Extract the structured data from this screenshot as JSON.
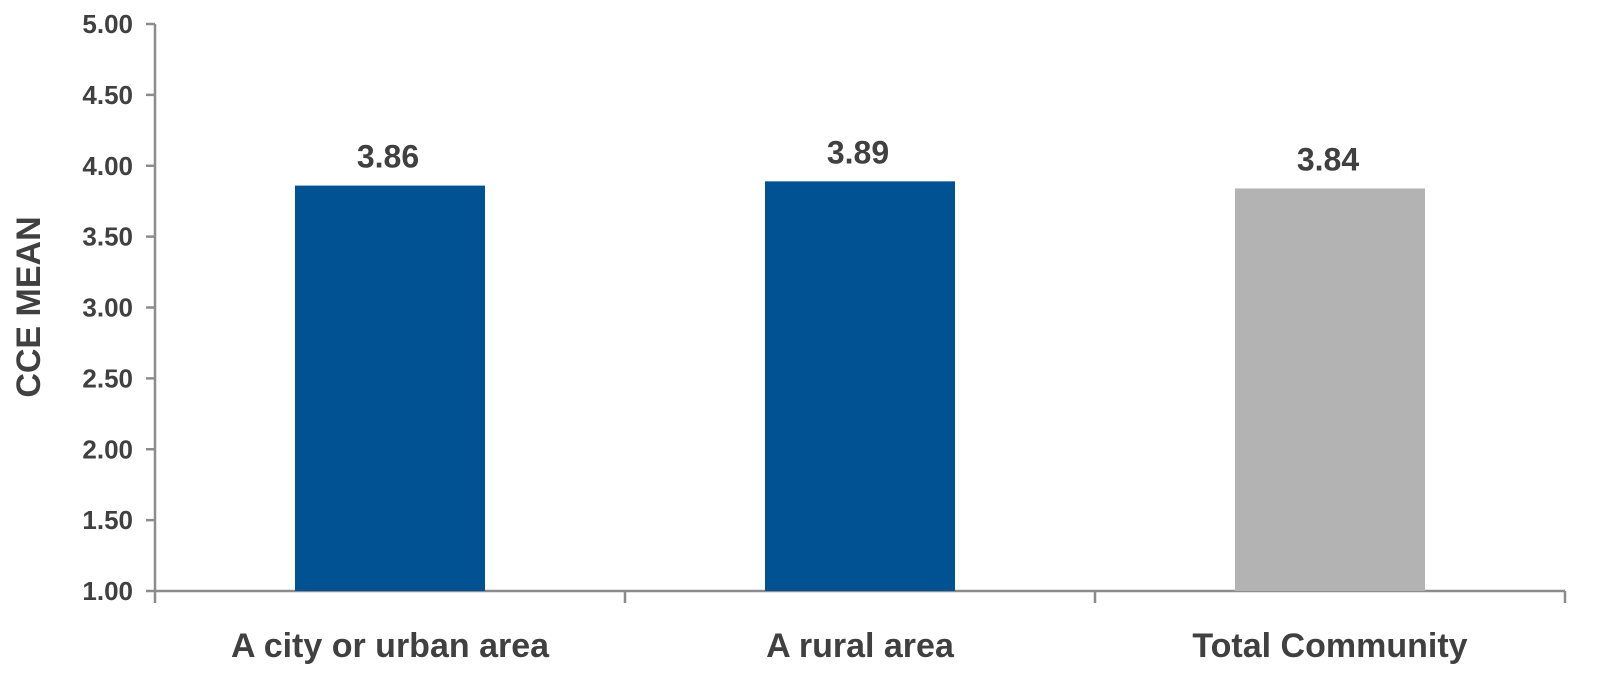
{
  "chart_data": {
    "type": "bar",
    "title": "",
    "xlabel": "",
    "ylabel": "CCE MEAN",
    "ylim": [
      1.0,
      5.0
    ],
    "yticks": [
      "1.00",
      "1.50",
      "2.00",
      "2.50",
      "3.00",
      "3.50",
      "4.00",
      "4.50",
      "5.00"
    ],
    "categories": [
      "A city or urban area",
      "A rural area",
      "Total Community"
    ],
    "values": [
      3.86,
      3.89,
      3.84
    ],
    "value_labels": [
      "3.86",
      "3.89",
      "3.84"
    ],
    "colors": [
      "#005293",
      "#005293",
      "#b3b3b3"
    ],
    "grid": false,
    "legend": "none"
  }
}
